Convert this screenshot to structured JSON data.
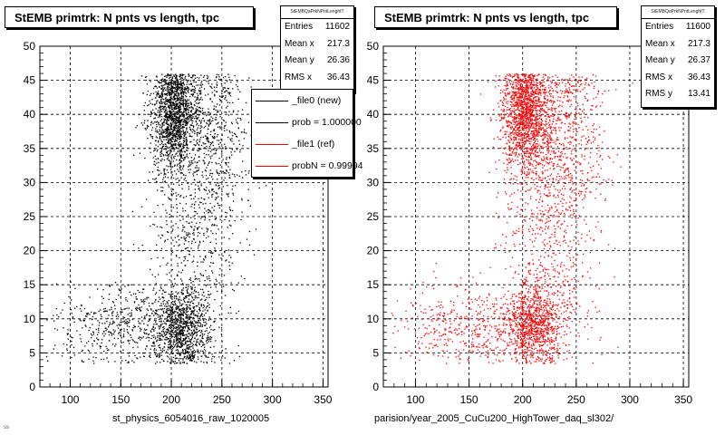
{
  "chart_data": [
    {
      "type": "scatter",
      "title": "StEMB primtrk: N pnts vs length, tpc",
      "xlabel": "st_physics_6054016_raw_1020005",
      "ylabel": "",
      "xlim": [
        70,
        355
      ],
      "ylim": [
        0,
        50
      ],
      "xticks": [
        "100",
        "150",
        "200",
        "250",
        "300",
        "350"
      ],
      "yticks": [
        "0",
        "5",
        "10",
        "15",
        "20",
        "25",
        "30",
        "35",
        "40",
        "45",
        "50"
      ],
      "grid": true,
      "marker_color": "#000000",
      "stats": {
        "name": "StEMBQaPrkNPntLenghtT",
        "rows": [
          {
            "label": "Entries",
            "value": "11602"
          },
          {
            "label": "Mean x",
            "value": "217.3"
          },
          {
            "label": "Mean y",
            "value": "26.36"
          },
          {
            "label": "RMS x",
            "value": "36.43"
          }
        ]
      },
      "legend": {
        "position": "top-right",
        "entries": [
          {
            "label": "_file0 (new)",
            "color": "#000000"
          },
          {
            "label": "prob = 1.000000",
            "color": "#000000"
          },
          {
            "label": "_file1 (ref)",
            "color": "#ff0000"
          },
          {
            "label": "probN = 0.99994",
            "color": "#ff0000"
          }
        ]
      },
      "density_regions": [
        {
          "x": 202,
          "y": 40,
          "sx": 11,
          "sy": 4,
          "w": 3
        },
        {
          "x": 210,
          "y": 9,
          "sx": 14,
          "sy": 3,
          "w": 2
        },
        {
          "x": 238,
          "y": 38,
          "sx": 20,
          "sy": 6,
          "w": 1
        },
        {
          "x": 225,
          "y": 24,
          "sx": 22,
          "sy": 10,
          "w": 1.5
        },
        {
          "x": 150,
          "y": 9,
          "sx": 35,
          "sy": 3,
          "w": 1
        }
      ]
    },
    {
      "type": "scatter",
      "title": "StEMB primtrk: N pnts vs length, tpc",
      "xlabel": "parision/year_2005_CuCu200_HighTower_daq_sl302/",
      "ylabel": "",
      "xlim": [
        70,
        355
      ],
      "ylim": [
        0,
        50
      ],
      "xticks": [
        "100",
        "150",
        "200",
        "250",
        "300",
        "350"
      ],
      "yticks": [
        "0",
        "5",
        "10",
        "15",
        "20",
        "25",
        "30",
        "35",
        "40",
        "45",
        "50"
      ],
      "grid": true,
      "marker_color": "#ff0000",
      "stats": {
        "name": "StEMBQaPrkNPntLenghtT",
        "rows": [
          {
            "label": "Entries",
            "value": "11600"
          },
          {
            "label": "Mean x",
            "value": "217.3"
          },
          {
            "label": "Mean y",
            "value": "26.37"
          },
          {
            "label": "RMS x",
            "value": "36.43"
          },
          {
            "label": "RMS y",
            "value": "13.41"
          }
        ]
      },
      "density_regions": [
        {
          "x": 202,
          "y": 40,
          "sx": 11,
          "sy": 4,
          "w": 3
        },
        {
          "x": 210,
          "y": 9,
          "sx": 14,
          "sy": 3,
          "w": 2
        },
        {
          "x": 238,
          "y": 38,
          "sx": 20,
          "sy": 6,
          "w": 1
        },
        {
          "x": 225,
          "y": 24,
          "sx": 22,
          "sy": 10,
          "w": 1.5
        },
        {
          "x": 150,
          "y": 9,
          "sx": 35,
          "sy": 3,
          "w": 1
        }
      ]
    }
  ],
  "footer_text": "ss"
}
